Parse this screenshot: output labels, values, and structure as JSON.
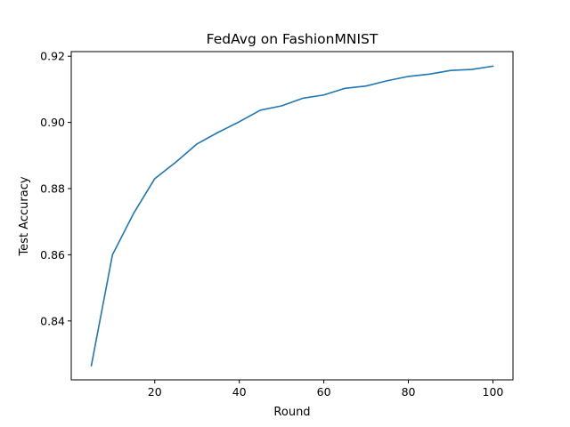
{
  "chart_data": {
    "type": "line",
    "title": "FedAvg on FashionMNIST",
    "xlabel": "Round",
    "ylabel": "Test Accuracy",
    "xlim": [
      0.25,
      104.75
    ],
    "ylim": [
      0.8222,
      0.9214
    ],
    "xticks": [
      20,
      40,
      60,
      80,
      100
    ],
    "yticks": [
      0.84,
      0.86,
      0.88,
      0.9,
      0.92
    ],
    "ytick_labels": [
      "0.84",
      "0.86",
      "0.88",
      "0.90",
      "0.92"
    ],
    "grid": false,
    "series_color": "#1f77b4",
    "series": [
      {
        "x": [
          5,
          10,
          15,
          20,
          25,
          30,
          35,
          40,
          45,
          50,
          55,
          60,
          65,
          70,
          75,
          80,
          85,
          90,
          95,
          100
        ],
        "values": [
          0.8265,
          0.86,
          0.8725,
          0.883,
          0.888,
          0.8935,
          0.897,
          0.9002,
          0.9037,
          0.905,
          0.9073,
          0.9083,
          0.9103,
          0.911,
          0.9126,
          0.9139,
          0.9146,
          0.9157,
          0.916,
          0.917
        ]
      }
    ]
  }
}
